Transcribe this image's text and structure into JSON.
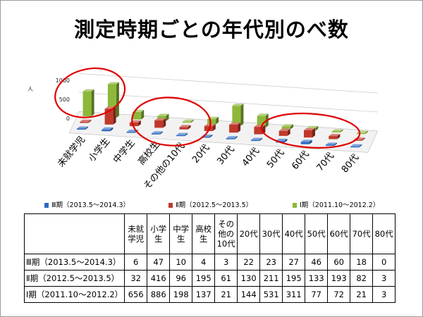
{
  "slide": {
    "title": "測定時期ごとの年代別のべ数"
  },
  "colors": {
    "s3": "#2e6bc4",
    "s2": "#c0392b",
    "s1": "#8db83a",
    "highlight": "#e00000"
  },
  "chart_data": {
    "type": "bar",
    "title": "測定時期ごとの年代別のべ数",
    "ylabel": "人",
    "ylim": [
      0,
      1000
    ],
    "yticks": [
      0,
      500,
      1000
    ],
    "categories": [
      "未就学児",
      "小学生",
      "中学生",
      "高校生",
      "その他の10代",
      "20代",
      "30代",
      "40代",
      "50代",
      "60代",
      "70代",
      "80代"
    ],
    "series": [
      {
        "name": "Ⅲ期（2013.5～2014.3）",
        "values": [
          6,
          47,
          10,
          4,
          3,
          22,
          23,
          27,
          46,
          60,
          18,
          0
        ]
      },
      {
        "name": "Ⅱ期（2012.5～2013.5）",
        "values": [
          32,
          416,
          96,
          195,
          61,
          130,
          211,
          195,
          133,
          193,
          82,
          3
        ]
      },
      {
        "name": "Ⅰ期（2011.10～2012.2）",
        "values": [
          656,
          886,
          198,
          137,
          21,
          144,
          531,
          311,
          77,
          72,
          21,
          3
        ]
      }
    ],
    "legend_position": "bottom",
    "annotations": [
      "red-circle-未就学児",
      "red-circle-高校生-その他の10代",
      "red-circle-50代-70代"
    ]
  },
  "table": {
    "header": [
      "未就\n学児",
      "小学\n生",
      "中学\n生",
      "高校\n生",
      "その\n他の\n10代",
      "20代",
      "30代",
      "40代",
      "50代",
      "60代",
      "70代",
      "80代"
    ],
    "rows": [
      {
        "label": "Ⅲ期（2013.5～2014.3）",
        "values": [
          "6",
          "47",
          "10",
          "4",
          "3",
          "22",
          "23",
          "27",
          "46",
          "60",
          "18",
          "0"
        ]
      },
      {
        "label": "Ⅱ期（2012.5～2013.5）",
        "values": [
          "32",
          "416",
          "96",
          "195",
          "61",
          "130",
          "211",
          "195",
          "133",
          "193",
          "82",
          "3"
        ]
      },
      {
        "label": "Ⅰ期（2011.10～2012.2）",
        "values": [
          "656",
          "886",
          "198",
          "137",
          "21",
          "144",
          "531",
          "311",
          "77",
          "72",
          "21",
          "3"
        ]
      }
    ]
  }
}
